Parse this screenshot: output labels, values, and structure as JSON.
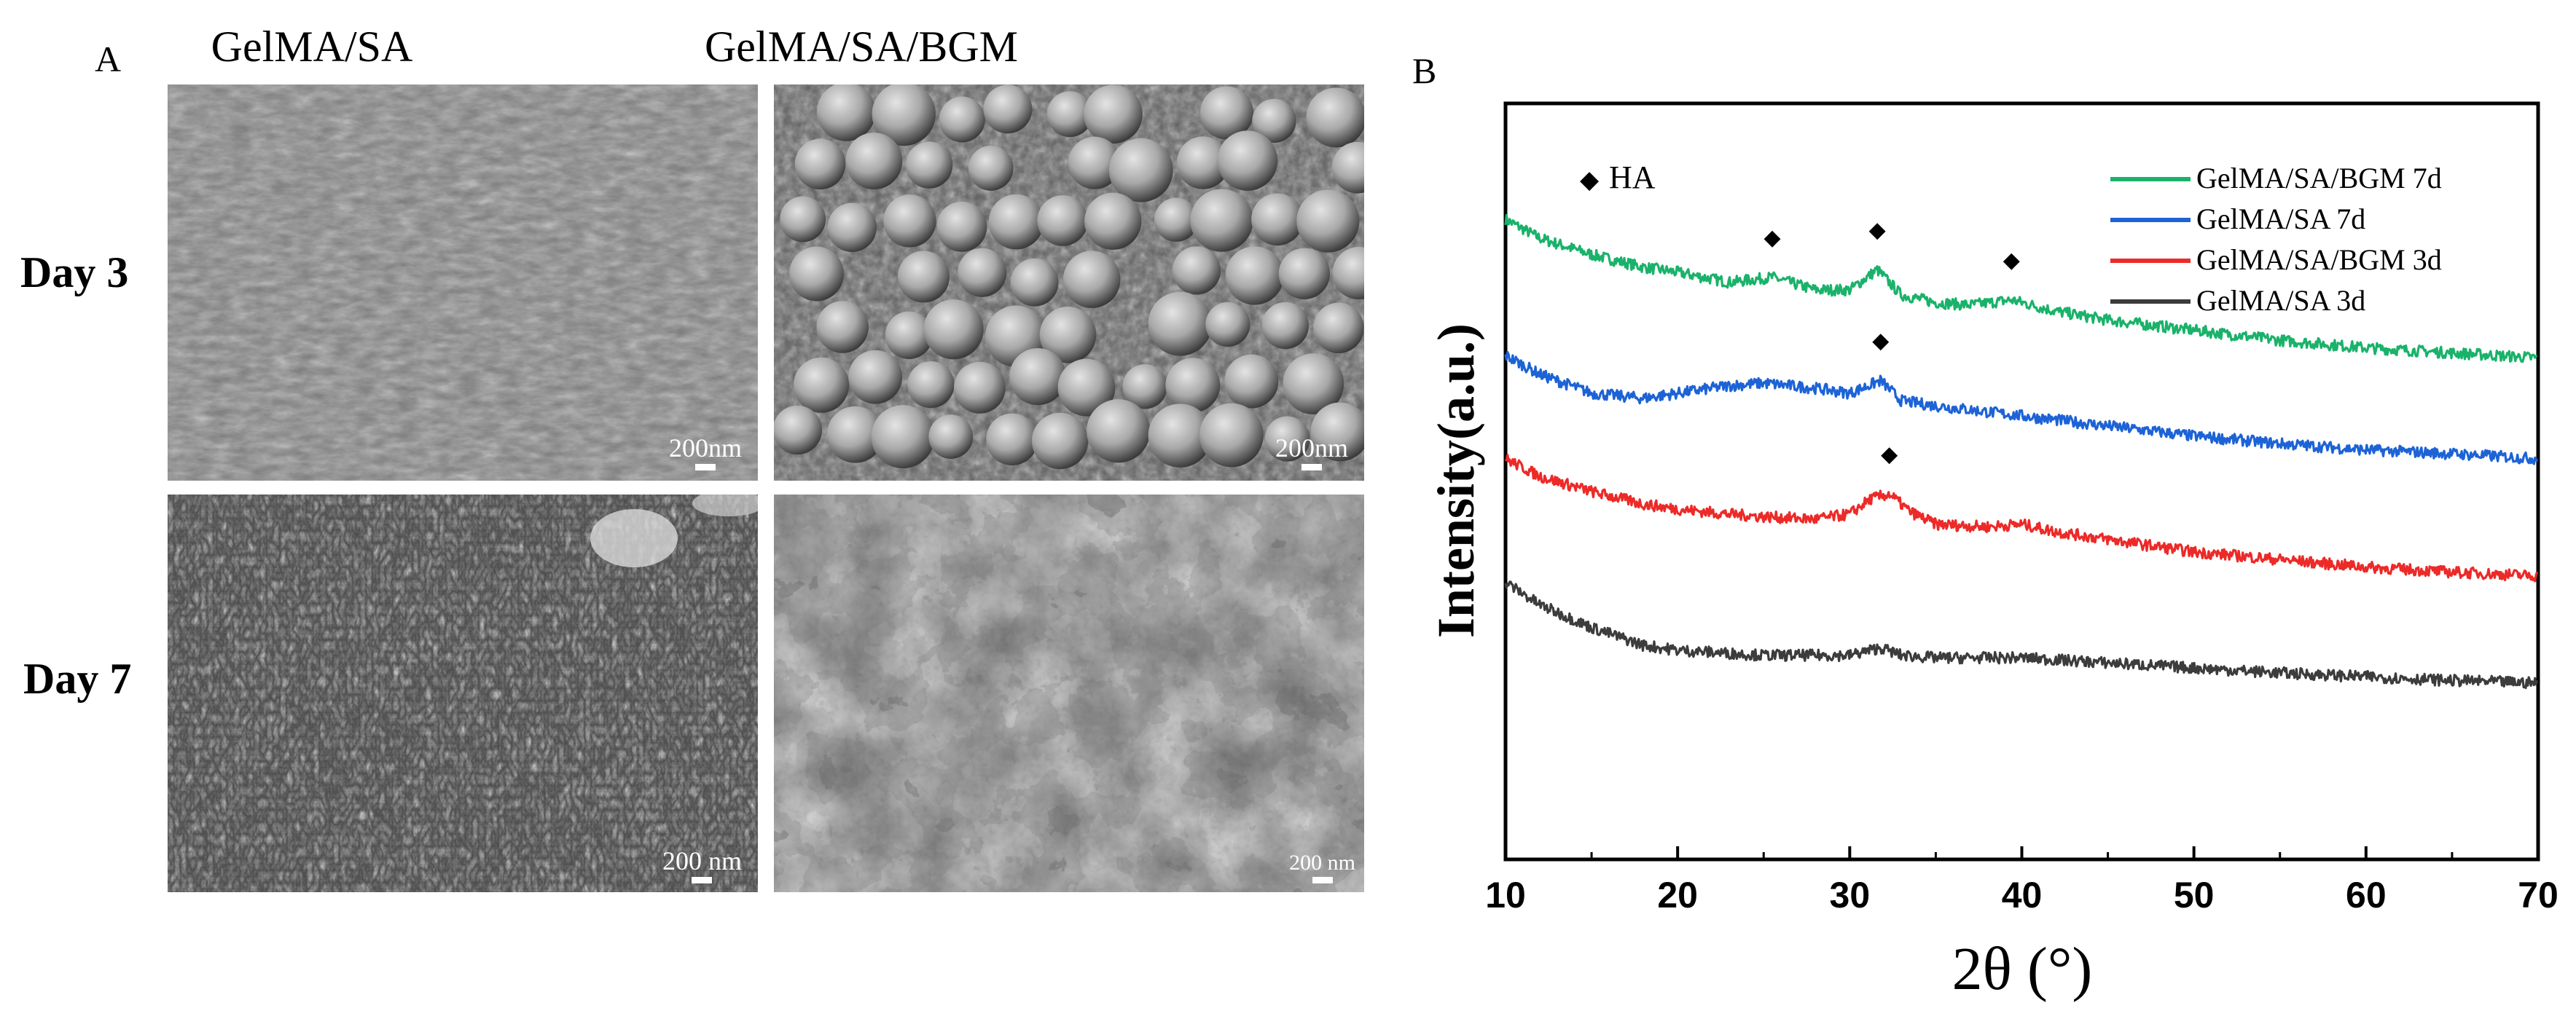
{
  "panel_a": {
    "letter": "A",
    "columns": [
      "GelMA/SA",
      "GelMA/SA/BGM"
    ],
    "rows": [
      "Day 3",
      "Day 7"
    ],
    "images": [
      {
        "row": "Day 3",
        "column": "GelMA/SA",
        "scale_bar": "200nm",
        "appearance": "smooth-surface"
      },
      {
        "row": "Day 3",
        "column": "GelMA/SA/BGM",
        "scale_bar": "200nm",
        "appearance": "spherical-particles"
      },
      {
        "row": "Day 7",
        "column": "GelMA/SA",
        "scale_bar": "200 nm",
        "appearance": "flaky-crystals"
      },
      {
        "row": "Day 7",
        "column": "GelMA/SA/BGM",
        "scale_bar": "200 nm",
        "appearance": "porous-network"
      }
    ]
  },
  "panel_b": {
    "letter": "B",
    "marker_legend": "HA",
    "marker_symbol": "◆"
  },
  "chart_data": {
    "type": "line",
    "xlabel": "2θ (°)",
    "ylabel": "Intensity(a.u.)",
    "xlim": [
      10,
      70
    ],
    "xticks": [
      10,
      20,
      30,
      40,
      50,
      60,
      70
    ],
    "yticks_shown": false,
    "legend_position": "top-right",
    "series": [
      {
        "name": "GelMA/SA/BGM 7d",
        "color": "#1ab26a",
        "x": [
          10,
          12,
          15,
          18,
          20,
          23,
          25.5,
          28,
          30,
          31.6,
          33,
          35,
          37,
          39.4,
          42,
          45,
          50,
          55,
          60,
          65,
          70
        ],
        "y": [
          5.08,
          4.93,
          4.8,
          4.7,
          4.66,
          4.58,
          4.62,
          4.52,
          4.52,
          4.68,
          4.48,
          4.42,
          4.4,
          4.44,
          4.35,
          4.28,
          4.2,
          4.12,
          4.06,
          4.02,
          3.98
        ],
        "peaks": [
          25.5,
          31.6,
          39.4
        ]
      },
      {
        "name": "GelMA/SA 7d",
        "color": "#1d63d6",
        "x": [
          10,
          12,
          15,
          18,
          20,
          23,
          25,
          28,
          30,
          31.8,
          33,
          35,
          40,
          45,
          50,
          55,
          60,
          65,
          70
        ],
        "y": [
          4.0,
          3.85,
          3.7,
          3.66,
          3.7,
          3.76,
          3.78,
          3.74,
          3.7,
          3.8,
          3.64,
          3.6,
          3.52,
          3.44,
          3.36,
          3.3,
          3.25,
          3.22,
          3.18
        ],
        "peaks": [
          31.8
        ]
      },
      {
        "name": "GelMA/SA/BGM 3d",
        "color": "#ec2a28",
        "x": [
          10,
          12,
          15,
          18,
          20,
          23,
          25,
          28,
          30,
          31.2,
          32.3,
          33.5,
          35,
          38,
          40,
          42,
          45,
          50,
          55,
          60,
          65,
          70
        ],
        "y": [
          3.18,
          3.04,
          2.92,
          2.82,
          2.78,
          2.74,
          2.72,
          2.7,
          2.74,
          2.86,
          2.9,
          2.76,
          2.66,
          2.64,
          2.66,
          2.6,
          2.54,
          2.44,
          2.38,
          2.32,
          2.28,
          2.25
        ],
        "peaks": [
          32.3
        ]
      },
      {
        "name": "GelMA/SA 3d",
        "color": "#3c3c3c",
        "x": [
          10,
          12,
          15,
          18,
          20,
          25,
          30,
          31.8,
          33,
          35,
          40,
          45,
          50,
          55,
          60,
          65,
          70
        ],
        "y": [
          2.2,
          2.02,
          1.84,
          1.7,
          1.66,
          1.62,
          1.62,
          1.68,
          1.62,
          1.6,
          1.6,
          1.56,
          1.52,
          1.48,
          1.45,
          1.42,
          1.4
        ],
        "peaks": []
      }
    ]
  }
}
